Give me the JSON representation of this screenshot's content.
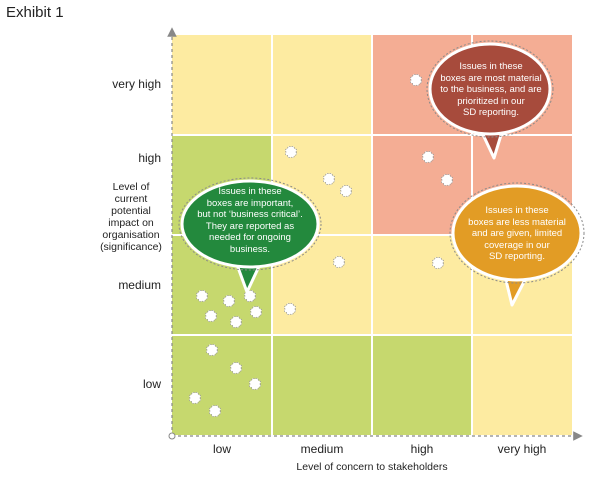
{
  "title": "Exhibit 1",
  "colors": {
    "red_zone": "#f4ad94",
    "green_zone": "#c6d86e",
    "yellow_zone": "#fdeba1",
    "red_bubble": "#a74b3c",
    "green_bubble": "#23893d",
    "amber_bubble": "#e29c25",
    "grid_line": "#ffffff",
    "axis": "#888888"
  },
  "y_axis": {
    "title": [
      "Level of",
      "current",
      "potential",
      "impact on",
      "organisation",
      "(significance)"
    ],
    "levels": [
      "very high",
      "high",
      "medium",
      "low"
    ]
  },
  "x_axis": {
    "title": "Level of concern to stakeholders",
    "levels": [
      "low",
      "medium",
      "high",
      "very high"
    ]
  },
  "matrix": [
    [
      "yellow",
      "yellow",
      "red",
      "red"
    ],
    [
      "green",
      "yellow",
      "red",
      "red"
    ],
    [
      "green",
      "yellow",
      "yellow",
      "yellow"
    ],
    [
      "green",
      "green",
      "green",
      "yellow"
    ]
  ],
  "callouts": [
    {
      "id": "red",
      "lines": [
        "Issues in these",
        "boxes are most material",
        "to the business, and are",
        "prioritized in our",
        "SD reporting."
      ]
    },
    {
      "id": "green",
      "lines": [
        "Issues in these",
        "boxes are important,",
        "but not ‘business critical’.",
        "They are reported as",
        "needed for ongoing",
        "business."
      ]
    },
    {
      "id": "amber",
      "lines": [
        "Issues in these",
        "boxes are less material",
        "and are given, limited",
        "coverage in our",
        "SD reporting."
      ]
    }
  ]
}
